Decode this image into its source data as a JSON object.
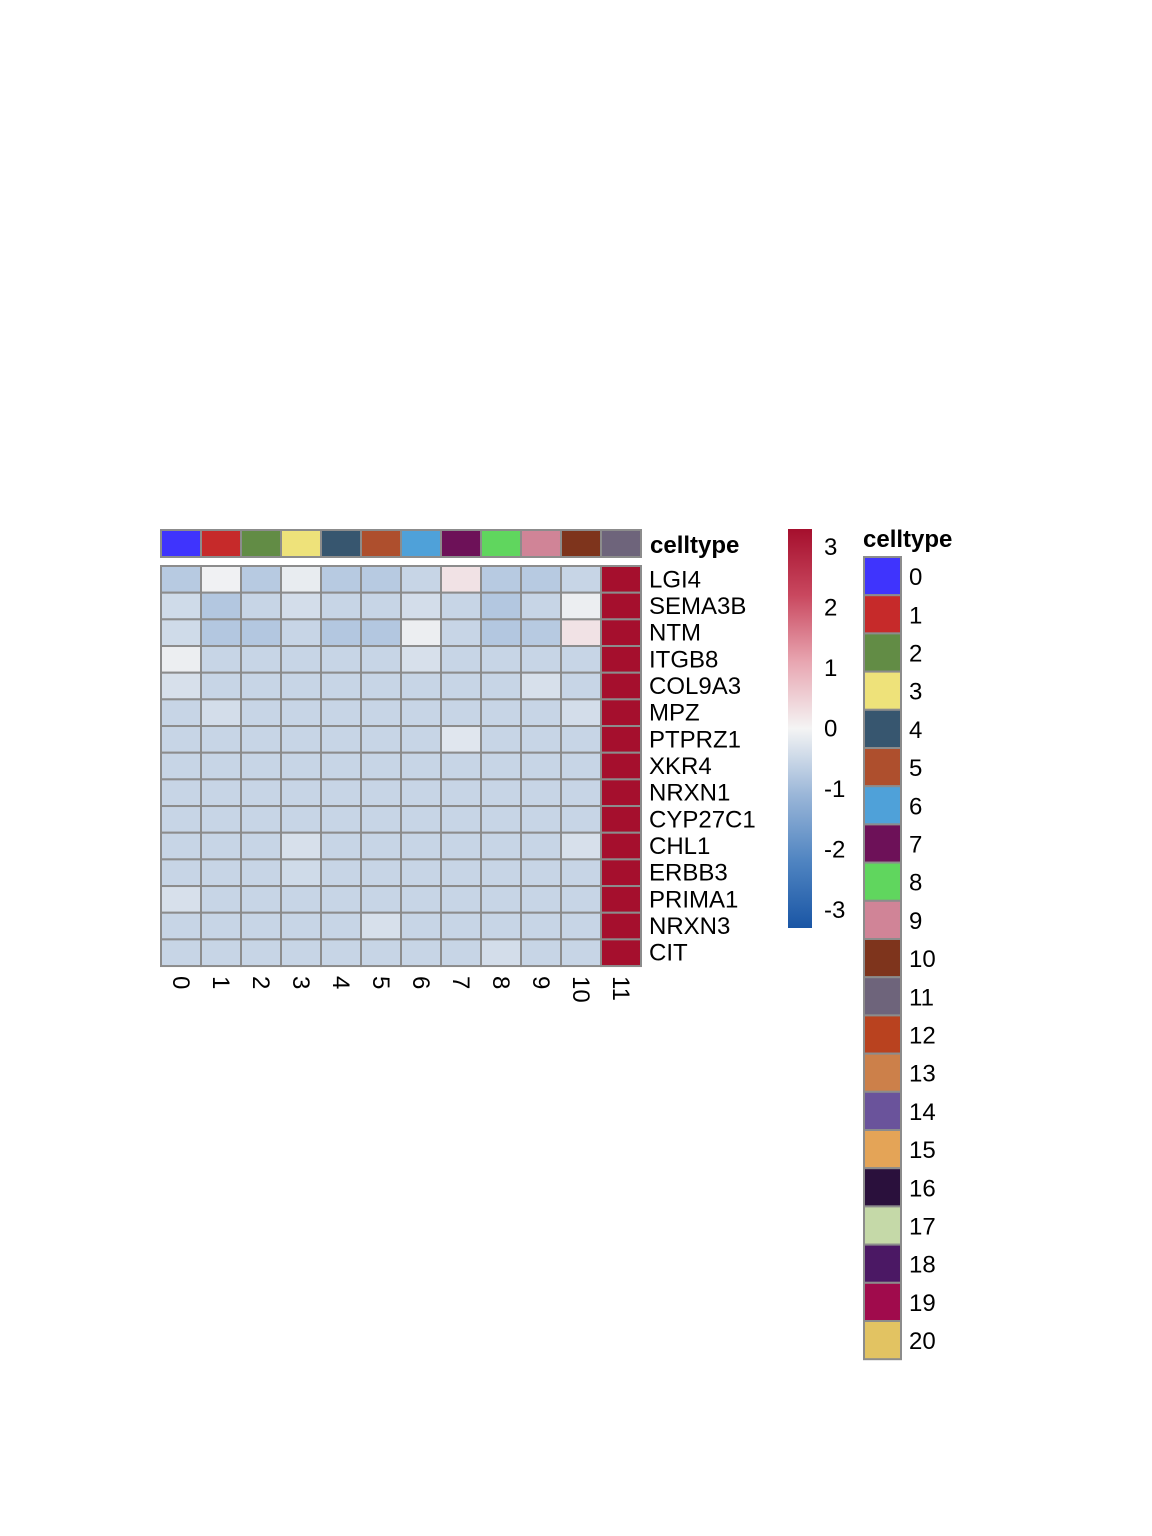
{
  "chart_data": {
    "type": "heatmap",
    "annotation_label": "celltype",
    "columns": [
      "0",
      "1",
      "2",
      "3",
      "4",
      "5",
      "6",
      "7",
      "8",
      "9",
      "10",
      "11"
    ],
    "rows": [
      "LGI4",
      "SEMA3B",
      "NTM",
      "ITGB8",
      "COL9A3",
      "MPZ",
      "PTPRZ1",
      "XKR4",
      "NRXN1",
      "CYP27C1",
      "CHL1",
      "ERBB3",
      "PRIMA1",
      "NRXN3",
      "CIT"
    ],
    "values": [
      [
        -0.75,
        -0.05,
        -0.75,
        -0.15,
        -0.75,
        -0.75,
        -0.55,
        0.25,
        -0.75,
        -0.75,
        -0.55,
        3.3
      ],
      [
        -0.45,
        -0.8,
        -0.55,
        -0.4,
        -0.55,
        -0.55,
        -0.4,
        -0.55,
        -0.8,
        -0.55,
        -0.1,
        3.3
      ],
      [
        -0.45,
        -0.8,
        -0.8,
        -0.55,
        -0.8,
        -0.8,
        -0.1,
        -0.55,
        -0.8,
        -0.75,
        0.25,
        3.3
      ],
      [
        -0.1,
        -0.55,
        -0.55,
        -0.55,
        -0.55,
        -0.55,
        -0.35,
        -0.55,
        -0.55,
        -0.55,
        -0.55,
        3.3
      ],
      [
        -0.35,
        -0.55,
        -0.55,
        -0.55,
        -0.55,
        -0.55,
        -0.55,
        -0.55,
        -0.55,
        -0.35,
        -0.55,
        3.3
      ],
      [
        -0.55,
        -0.4,
        -0.55,
        -0.55,
        -0.55,
        -0.55,
        -0.55,
        -0.55,
        -0.55,
        -0.55,
        -0.4,
        3.3
      ],
      [
        -0.55,
        -0.55,
        -0.55,
        -0.55,
        -0.55,
        -0.55,
        -0.55,
        -0.25,
        -0.55,
        -0.55,
        -0.55,
        3.3
      ],
      [
        -0.55,
        -0.55,
        -0.55,
        -0.55,
        -0.55,
        -0.55,
        -0.55,
        -0.55,
        -0.55,
        -0.55,
        -0.55,
        3.3
      ],
      [
        -0.55,
        -0.55,
        -0.55,
        -0.55,
        -0.55,
        -0.55,
        -0.55,
        -0.55,
        -0.55,
        -0.55,
        -0.55,
        3.3
      ],
      [
        -0.55,
        -0.55,
        -0.55,
        -0.55,
        -0.55,
        -0.55,
        -0.55,
        -0.55,
        -0.55,
        -0.55,
        -0.55,
        3.3
      ],
      [
        -0.55,
        -0.55,
        -0.55,
        -0.35,
        -0.55,
        -0.55,
        -0.55,
        -0.55,
        -0.55,
        -0.55,
        -0.35,
        3.3
      ],
      [
        -0.55,
        -0.55,
        -0.55,
        -0.45,
        -0.55,
        -0.55,
        -0.55,
        -0.55,
        -0.55,
        -0.55,
        -0.55,
        3.3
      ],
      [
        -0.35,
        -0.55,
        -0.55,
        -0.55,
        -0.55,
        -0.55,
        -0.55,
        -0.55,
        -0.55,
        -0.55,
        -0.55,
        3.3
      ],
      [
        -0.55,
        -0.55,
        -0.55,
        -0.55,
        -0.55,
        -0.35,
        -0.55,
        -0.55,
        -0.55,
        -0.55,
        -0.55,
        3.3
      ],
      [
        -0.55,
        -0.55,
        -0.55,
        -0.55,
        -0.55,
        -0.55,
        -0.55,
        -0.55,
        -0.4,
        -0.55,
        -0.55,
        3.3
      ]
    ],
    "color_scale": {
      "range": [
        -3.3,
        3.3
      ],
      "ticks": [
        "3",
        "2",
        "1",
        "0",
        "-1",
        "-2",
        "-3"
      ],
      "tick_values": [
        3,
        2,
        1,
        0,
        -1,
        -2,
        -3
      ],
      "colors": [
        "#1a56a5",
        "#4f84c1",
        "#9ab6d8",
        "#f4f4f4",
        "#e8a6b1",
        "#c9485f",
        "#a50f2d"
      ]
    },
    "legend": {
      "title": "celltype",
      "items": [
        {
          "label": "0",
          "color": "#3f34fd"
        },
        {
          "label": "1",
          "color": "#c62a2a"
        },
        {
          "label": "2",
          "color": "#628c45"
        },
        {
          "label": "3",
          "color": "#eee27a"
        },
        {
          "label": "4",
          "color": "#37566f"
        },
        {
          "label": "5",
          "color": "#ae4f2d"
        },
        {
          "label": "6",
          "color": "#4fa1d9"
        },
        {
          "label": "7",
          "color": "#6d1158"
        },
        {
          "label": "8",
          "color": "#60d65e"
        },
        {
          "label": "9",
          "color": "#d08497"
        },
        {
          "label": "10",
          "color": "#7e341c"
        },
        {
          "label": "11",
          "color": "#6e647b"
        },
        {
          "label": "12",
          "color": "#b9421f"
        },
        {
          "label": "13",
          "color": "#cc804a"
        },
        {
          "label": "14",
          "color": "#6a539b"
        },
        {
          "label": "15",
          "color": "#e4a457"
        },
        {
          "label": "16",
          "color": "#2a103c"
        },
        {
          "label": "17",
          "color": "#c5d9a8"
        },
        {
          "label": "18",
          "color": "#4b1864"
        },
        {
          "label": "19",
          "color": "#a00b4c"
        },
        {
          "label": "20",
          "color": "#e2c362"
        }
      ]
    }
  }
}
